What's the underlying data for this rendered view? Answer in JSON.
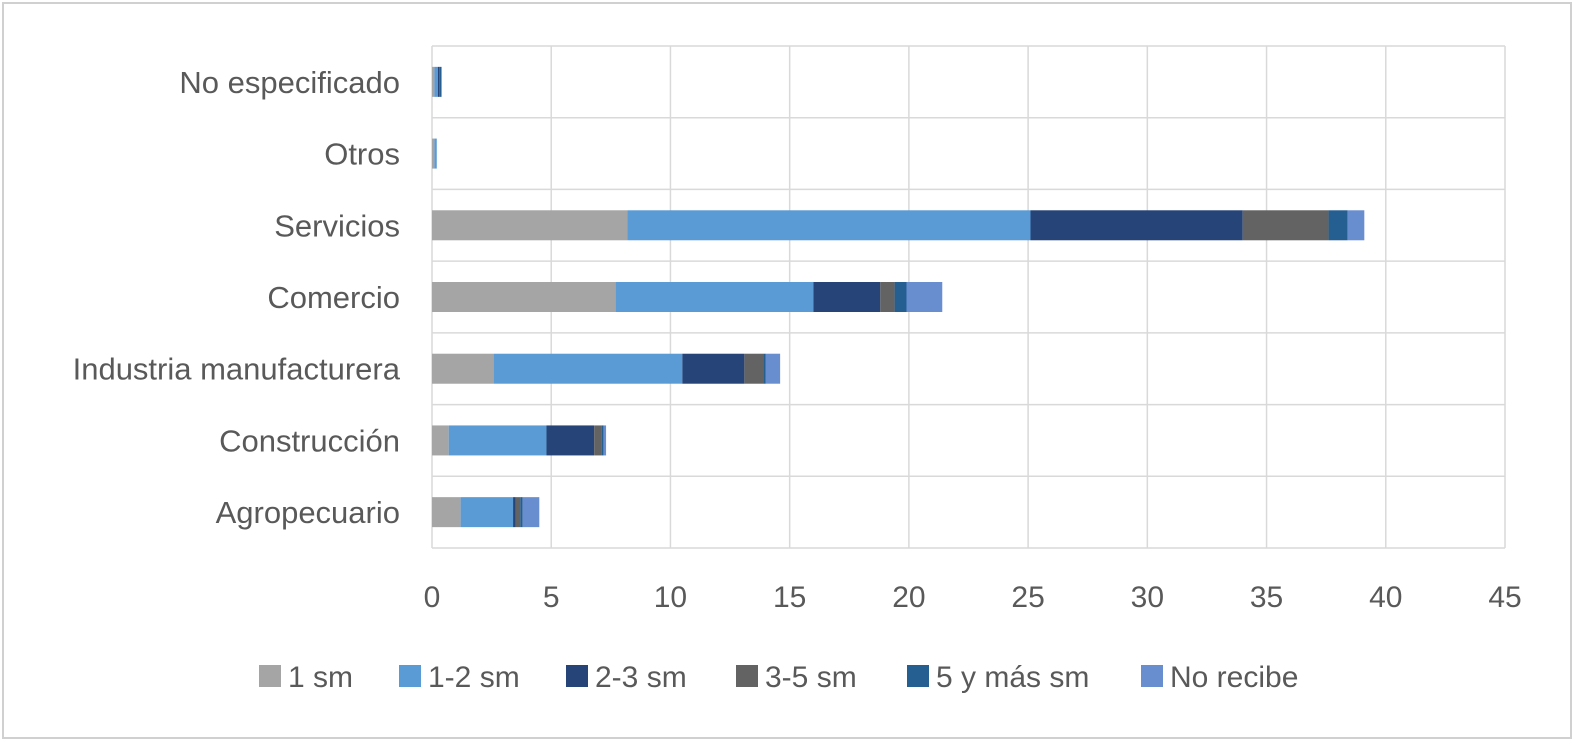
{
  "chart_data": {
    "type": "bar",
    "orientation": "horizontal",
    "stacked": true,
    "title": "",
    "xlabel": "",
    "ylabel": "",
    "xlim": [
      0,
      45
    ],
    "x_ticks": [
      "0",
      "5",
      "10",
      "15",
      "20",
      "25",
      "30",
      "35",
      "40",
      "45"
    ],
    "grid": true,
    "legend_position": "bottom",
    "categories": [
      "Agropecuario",
      "Construcción",
      "Industria manufacturera",
      "Comercio",
      "Servicios",
      "Otros",
      "No especificado"
    ],
    "series": [
      {
        "name": "1 sm",
        "color": "#a5a5a5",
        "values": [
          1.2,
          0.7,
          2.6,
          7.7,
          8.2,
          0.1,
          0.1
        ]
      },
      {
        "name": "1-2 sm",
        "color": "#5b9bd5",
        "values": [
          2.2,
          4.1,
          7.9,
          8.3,
          16.9,
          0.1,
          0.15
        ]
      },
      {
        "name": "2-3 sm",
        "color": "#264478",
        "values": [
          0.1,
          2.0,
          2.6,
          2.8,
          8.9,
          0.0,
          0.05
        ]
      },
      {
        "name": "3-5 sm",
        "color": "#636363",
        "values": [
          0.2,
          0.3,
          0.8,
          0.6,
          3.6,
          0.0,
          0.0
        ]
      },
      {
        "name": "5 y más sm",
        "color": "#255e91",
        "values": [
          0.1,
          0.1,
          0.1,
          0.5,
          0.8,
          0.0,
          0.1
        ]
      },
      {
        "name": "No recibe",
        "color": "#698ed0",
        "values": [
          0.7,
          0.1,
          0.6,
          1.5,
          0.7,
          0.0,
          0.0
        ]
      }
    ]
  }
}
